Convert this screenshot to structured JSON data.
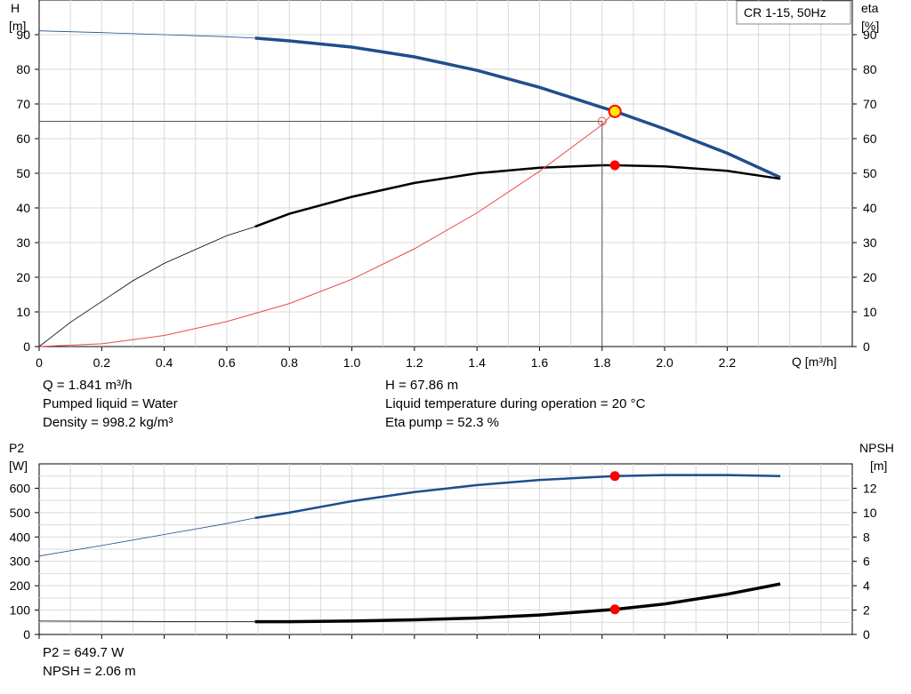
{
  "colors": {
    "head": "#1f4e8c",
    "eta": "#000000",
    "power": "#1f4e8c",
    "npsh": "#000000",
    "system": "#e84a4a",
    "marker": "#ff0000",
    "grid": "#d9d9d9"
  },
  "chart_data": [
    {
      "type": "line",
      "legend_box": "CR 1-15, 50Hz",
      "ylabel_left": "H",
      "ylabel_left_unit": "[m]",
      "ylabel_right": "eta",
      "ylabel_right_unit": "[%]",
      "xlabel": "Q [m³/h]",
      "xlim": [
        0,
        2.6
      ],
      "ylim": [
        0,
        100
      ],
      "x_ticks": [
        "0",
        "0.2",
        "0.4",
        "0.6",
        "0.8",
        "1.0",
        "1.2",
        "1.4",
        "1.6",
        "1.8",
        "2.0",
        "2.2"
      ],
      "y_ticks_left": [
        "0",
        "10",
        "20",
        "30",
        "40",
        "50",
        "60",
        "70",
        "80",
        "90"
      ],
      "y_ticks_right": [
        "0",
        "10",
        "20",
        "30",
        "40",
        "50",
        "60",
        "70",
        "80",
        "90"
      ],
      "grid": true,
      "series": [
        {
          "key": "head",
          "x": [
            0,
            0.2,
            0.4,
            0.6,
            0.69,
            0.8,
            1.0,
            1.2,
            1.4,
            1.6,
            1.8,
            1.841,
            2.0,
            2.2,
            2.37
          ],
          "y": [
            91.1,
            90.6,
            90.0,
            89.4,
            89.0,
            88.2,
            86.4,
            83.6,
            79.7,
            74.8,
            69.0,
            67.86,
            62.8,
            55.8,
            48.8
          ],
          "thick_from": 0.69
        },
        {
          "key": "eta",
          "x": [
            0,
            0.1,
            0.2,
            0.3,
            0.4,
            0.5,
            0.6,
            0.69,
            0.8,
            1.0,
            1.2,
            1.4,
            1.6,
            1.8,
            1.841,
            2.0,
            2.2,
            2.37
          ],
          "y": [
            0,
            7,
            13,
            19,
            24,
            28,
            32,
            34.6,
            38.3,
            43.2,
            47.2,
            50.0,
            51.6,
            52.3,
            52.3,
            52.0,
            50.7,
            48.4
          ],
          "thick_from": 0.69
        },
        {
          "key": "system",
          "x": [
            0,
            0.2,
            0.4,
            0.6,
            0.8,
            1.0,
            1.2,
            1.4,
            1.6,
            1.8,
            1.841
          ],
          "y": [
            0,
            0.8,
            3.2,
            7.2,
            12.4,
            19.4,
            28.2,
            38.6,
            50.6,
            64.0,
            67.86
          ]
        }
      ],
      "operating_point": {
        "x": 1.841,
        "head": 67.86,
        "eta": 52.3
      },
      "requested_point": {
        "x": 1.8,
        "y": 65
      }
    },
    {
      "type": "line",
      "ylabel_left": "P2",
      "ylabel_left_unit": "[W]",
      "ylabel_right": "NPSH",
      "ylabel_right_unit": "[m]",
      "xlim": [
        0,
        2.6
      ],
      "ylim_left": [
        0,
        700
      ],
      "ylim_right": [
        0,
        14
      ],
      "y_ticks_left": [
        "0",
        "100",
        "200",
        "300",
        "400",
        "500",
        "600"
      ],
      "y_ticks_right": [
        "0",
        "2",
        "4",
        "6",
        "8",
        "10",
        "12"
      ],
      "grid": true,
      "series": [
        {
          "key": "power",
          "axis": "left",
          "x": [
            0,
            0.2,
            0.4,
            0.6,
            0.69,
            0.8,
            1.0,
            1.2,
            1.4,
            1.6,
            1.841,
            2.0,
            2.2,
            2.37
          ],
          "y": [
            322,
            365,
            410,
            455,
            478,
            500,
            547,
            584,
            613,
            634,
            649.7,
            654,
            654,
            650
          ],
          "thick_from": 0.69
        },
        {
          "key": "npsh",
          "axis": "right",
          "x": [
            0,
            0.6,
            0.69,
            0.8,
            1.0,
            1.2,
            1.4,
            1.6,
            1.841,
            2.0,
            2.2,
            2.37
          ],
          "y": [
            1.1,
            1.05,
            1.05,
            1.05,
            1.1,
            1.2,
            1.35,
            1.6,
            2.06,
            2.5,
            3.3,
            4.15
          ],
          "thick_from": 0.69
        }
      ],
      "operating_point": {
        "x": 1.841,
        "power": 649.7,
        "npsh": 2.06
      }
    }
  ],
  "info": {
    "q": "Q = 1.841 m³/h",
    "liquid": "Pumped liquid = Water",
    "density": "Density = 998.2 kg/m³",
    "h": "H = 67.86 m",
    "temp": "Liquid temperature during operation = 20 °C",
    "eta": "Eta pump = 52.3 %",
    "p2": "P2 = 649.7 W",
    "npsh": "NPSH = 2.06 m"
  }
}
